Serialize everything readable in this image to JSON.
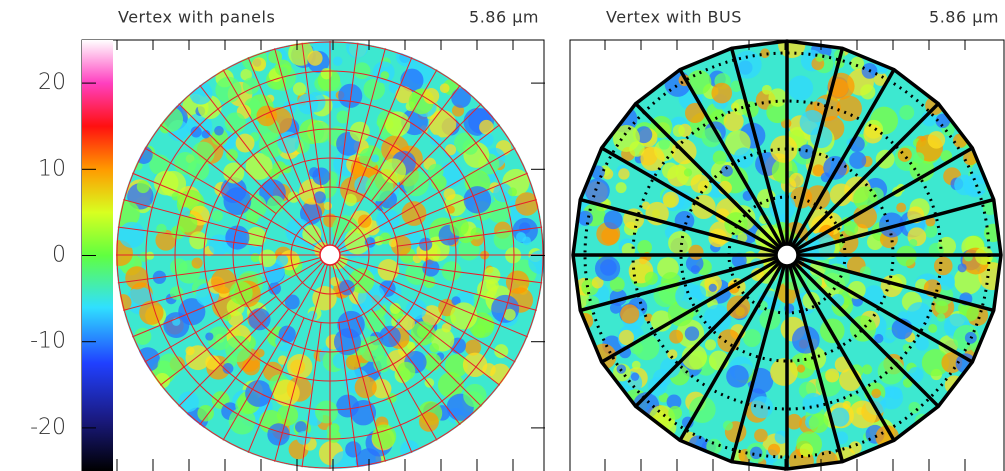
{
  "chart_data": [
    {
      "type": "map",
      "title": "Vertex with panels",
      "subtitle": "5.86 μm",
      "ylim": [
        -25,
        25
      ],
      "yticks": [
        -20,
        -10,
        0,
        10,
        20
      ],
      "colorbar": true,
      "grid_color": "#e8202a"
    },
    {
      "type": "map",
      "title": "Vertex with BUS",
      "subtitle": "5.86 μm",
      "colorbar": false,
      "grid_color": "#000000"
    }
  ]
}
